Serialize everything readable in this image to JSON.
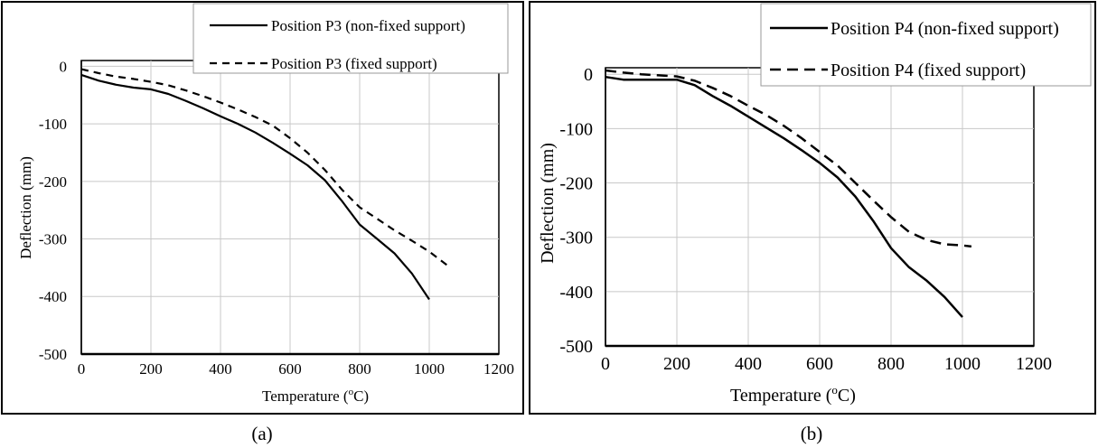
{
  "panels": [
    {
      "caption": "(a)",
      "xlabel": "Temperature (",
      "xlabel_sup": "o",
      "xlabel_tail": "C)",
      "ylabel": "Deflection (mm)"
    },
    {
      "caption": "(b)",
      "xlabel": "Temperature (",
      "xlabel_sup": "o",
      "xlabel_tail": "C)",
      "ylabel": "Deflection (mm)"
    }
  ],
  "chart_data": [
    {
      "type": "line",
      "title": "",
      "xlabel": "Temperature (oC)",
      "ylabel": "Deflection (mm)",
      "xlim": [
        0,
        1200
      ],
      "ylim": [
        -500,
        0
      ],
      "xticks": [
        0,
        200,
        400,
        600,
        800,
        1000,
        1200
      ],
      "yticks": [
        0,
        -100,
        -200,
        -300,
        -400,
        -500
      ],
      "grid": "vertical and horizontal",
      "legend_position": "top-right",
      "series": [
        {
          "name": "Position P3 (non-fixed support)",
          "style": "solid",
          "x": [
            0,
            50,
            100,
            150,
            200,
            250,
            300,
            350,
            400,
            450,
            500,
            550,
            600,
            650,
            700,
            750,
            800,
            850,
            900,
            950,
            1000
          ],
          "y": [
            -15,
            -25,
            -32,
            -37,
            -40,
            -48,
            -60,
            -73,
            -87,
            -100,
            -115,
            -133,
            -152,
            -172,
            -198,
            -235,
            -275,
            -300,
            -325,
            -360,
            -405
          ]
        },
        {
          "name": "Position P3 (fixed support)",
          "style": "dashed",
          "x": [
            0,
            50,
            100,
            150,
            200,
            250,
            300,
            350,
            400,
            450,
            500,
            550,
            600,
            650,
            700,
            750,
            800,
            850,
            900,
            950,
            1000,
            1050
          ],
          "y": [
            -5,
            -12,
            -18,
            -22,
            -27,
            -33,
            -42,
            -52,
            -63,
            -75,
            -88,
            -103,
            -125,
            -150,
            -180,
            -215,
            -245,
            -265,
            -285,
            -303,
            -322,
            -345
          ]
        }
      ]
    },
    {
      "type": "line",
      "title": "",
      "xlabel": "Temperature (oC)",
      "ylabel": "Deflection (mm)",
      "xlim": [
        0,
        1200
      ],
      "ylim": [
        -500,
        0
      ],
      "xticks": [
        0,
        200,
        400,
        600,
        800,
        1000,
        1200
      ],
      "yticks": [
        0,
        -100,
        -200,
        -300,
        -400,
        -500
      ],
      "grid": "vertical and horizontal",
      "legend_position": "top-right",
      "series": [
        {
          "name": "Position P4 (non-fixed support)",
          "style": "solid",
          "x": [
            0,
            50,
            100,
            150,
            200,
            250,
            300,
            350,
            400,
            450,
            500,
            550,
            600,
            650,
            700,
            750,
            800,
            850,
            900,
            950,
            1000
          ],
          "y": [
            -5,
            -10,
            -10,
            -10,
            -10,
            -20,
            -40,
            -58,
            -78,
            -98,
            -118,
            -140,
            -163,
            -190,
            -225,
            -270,
            -320,
            -355,
            -380,
            -410,
            -447
          ]
        },
        {
          "name": "Position P4 (fixed support)",
          "style": "dashed",
          "x": [
            0,
            50,
            100,
            150,
            200,
            250,
            300,
            350,
            400,
            450,
            500,
            550,
            600,
            650,
            700,
            750,
            800,
            850,
            900,
            950,
            1000,
            1025
          ],
          "y": [
            7,
            3,
            0,
            -2,
            -4,
            -12,
            -25,
            -40,
            -58,
            -75,
            -95,
            -118,
            -143,
            -168,
            -200,
            -232,
            -263,
            -290,
            -305,
            -313,
            -315,
            -317
          ]
        }
      ]
    }
  ]
}
